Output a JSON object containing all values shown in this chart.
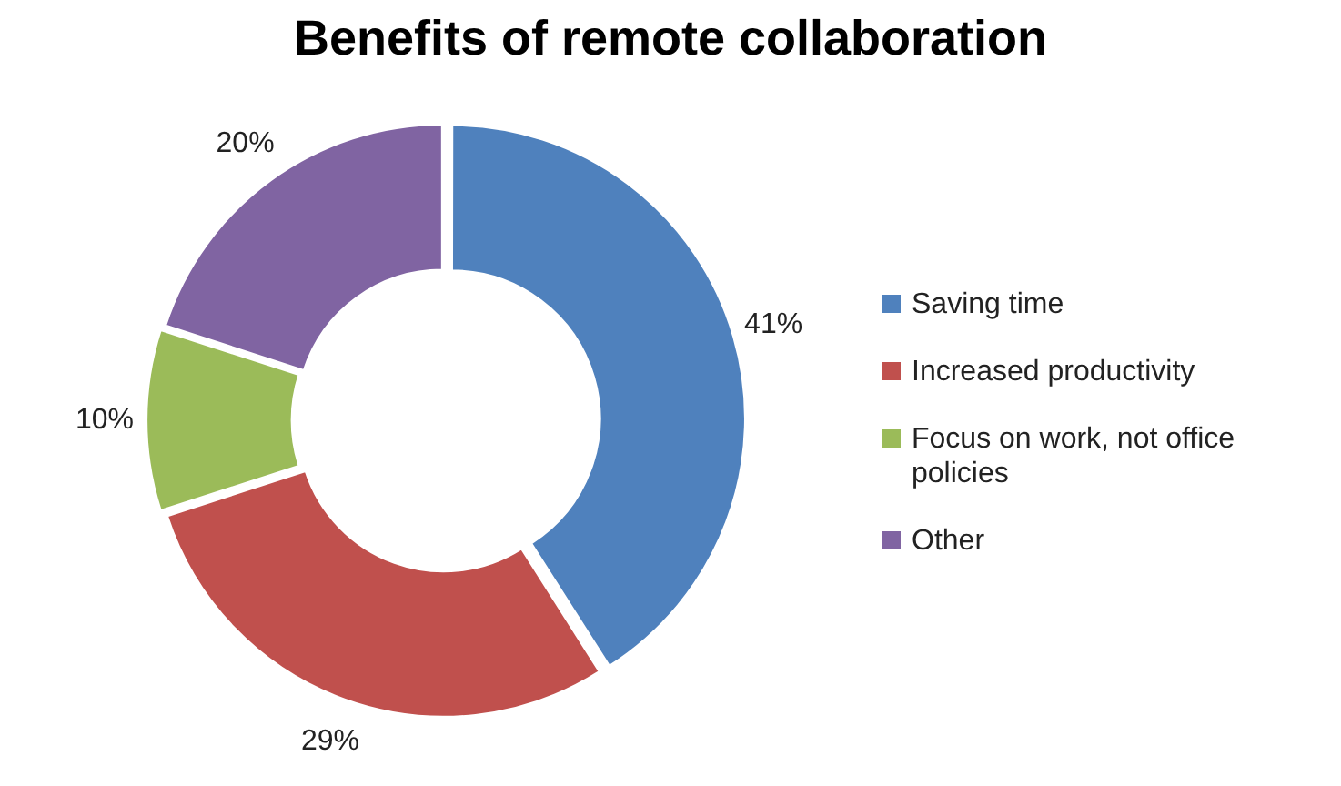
{
  "chart_data": {
    "type": "donut",
    "title": "Benefits of remote collaboration",
    "categories": [
      "Saving time",
      "Increased productivity",
      "Focus on work, not office policies",
      "Other"
    ],
    "values": [
      41,
      29,
      10,
      20
    ],
    "colors": [
      "#4f81bd",
      "#c0504d",
      "#9bbb59",
      "#8064a2"
    ],
    "value_labels": [
      "41%",
      "29%",
      "10%",
      "20%"
    ],
    "legend": "right"
  }
}
